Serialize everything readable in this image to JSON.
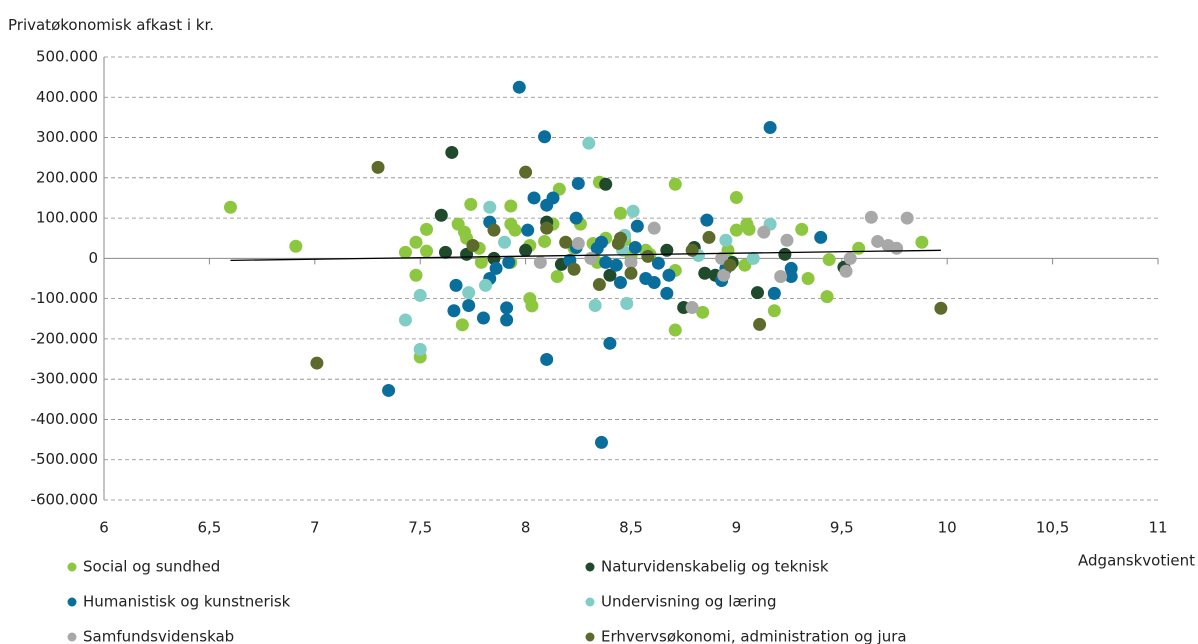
{
  "chart_data": {
    "type": "scatter",
    "y_label": "Privatøkonomisk afkast i kr.",
    "x_label": "Adganskvotient",
    "xlim": [
      6,
      11
    ],
    "xticks": [
      6,
      {
        "value": 6.5,
        "label": "6,5"
      },
      7,
      {
        "value": 7.5,
        "label": "7,5"
      },
      8,
      {
        "value": 8.5,
        "label": "8,5"
      },
      9,
      {
        "value": 9.5,
        "label": "9,5"
      },
      10,
      {
        "value": 10.5,
        "label": "10,5"
      },
      11
    ],
    "ylim": [
      -600000,
      500000
    ],
    "yticks": [
      {
        "value": -600000,
        "label": "-600.000"
      },
      {
        "value": -500000,
        "label": "-500.000"
      },
      {
        "value": -400000,
        "label": "-400.000"
      },
      {
        "value": -300000,
        "label": "-300.000"
      },
      {
        "value": -200000,
        "label": "-200.000"
      },
      {
        "value": -100000,
        "label": "-100.000"
      },
      0,
      {
        "value": 100000,
        "label": "100.000"
      },
      {
        "value": 200000,
        "label": "200.000"
      },
      {
        "value": 300000,
        "label": "300.000"
      },
      {
        "value": 400000,
        "label": "400.000"
      },
      {
        "value": 500000,
        "label": "500.000"
      }
    ],
    "grid": true,
    "legend_position": "bottom",
    "trendline": {
      "color": "#000000",
      "x": [
        6.6,
        9.97
      ],
      "y": [
        -5000,
        20000
      ]
    },
    "series": [
      {
        "name": "Social og sundhed",
        "color": "#8dc63f",
        "x": [
          6.6,
          6.91,
          7.43,
          7.48,
          7.53,
          7.53,
          7.48,
          7.5,
          7.68,
          7.71,
          7.72,
          7.74,
          7.7,
          7.78,
          7.79,
          7.93,
          7.93,
          7.95,
          7.93,
          8.02,
          8.03,
          8.02,
          8.09,
          8.16,
          8.13,
          8.15,
          8.23,
          8.26,
          8.32,
          8.35,
          8.34,
          8.45,
          8.38,
          8.47,
          8.5,
          8.57,
          8.59,
          8.71,
          8.71,
          8.71,
          8.84,
          8.96,
          9.0,
          9.0,
          9.04,
          9.05,
          9.06,
          9.18,
          9.31,
          9.34,
          9.44,
          9.43,
          9.58,
          9.88
        ],
        "y": [
          127000,
          30000,
          15000,
          40000,
          72000,
          18000,
          -42000,
          -245000,
          85000,
          65000,
          50000,
          134000,
          -165000,
          25000,
          -10000,
          130000,
          85000,
          70000,
          -10000,
          -100000,
          -118000,
          32000,
          42000,
          172000,
          85000,
          -45000,
          25000,
          85000,
          37000,
          189000,
          -10000,
          112000,
          50000,
          45000,
          5000,
          20000,
          10000,
          184000,
          -30000,
          -178000,
          -134000,
          20000,
          151000,
          70000,
          -17000,
          85000,
          72000,
          -130000,
          72000,
          -50000,
          -3000,
          -95000,
          25000,
          40000
        ]
      },
      {
        "name": "Naturvidenskabelig og teknisk",
        "color": "#1f4a2c",
        "x": [
          7.6,
          7.65,
          7.62,
          7.72,
          7.85,
          8.0,
          8.1,
          8.17,
          8.38,
          8.4,
          8.67,
          8.75,
          8.8,
          8.85,
          8.9,
          8.98,
          9.1,
          9.23,
          9.51
        ],
        "y": [
          107000,
          263000,
          15000,
          10000,
          0,
          20000,
          90000,
          -15000,
          184000,
          -42000,
          20000,
          -122000,
          27000,
          -37000,
          -42000,
          -10000,
          -85000,
          10000,
          -22000
        ]
      },
      {
        "name": "Humanistisk og kunstnerisk",
        "color": "#0a6e9c",
        "x": [
          7.35,
          7.67,
          7.66,
          7.73,
          7.8,
          7.83,
          7.86,
          7.83,
          7.91,
          7.91,
          7.92,
          7.97,
          8.01,
          8.04,
          8.09,
          8.1,
          8.1,
          8.13,
          8.21,
          8.25,
          8.24,
          8.24,
          8.34,
          8.36,
          8.38,
          8.36,
          8.4,
          8.43,
          8.45,
          8.52,
          8.53,
          8.57,
          8.63,
          8.68,
          8.67,
          8.86,
          8.93,
          8.95,
          9.16,
          9.18,
          9.26,
          9.26,
          9.4,
          8.61
        ],
        "y": [
          -328000,
          -67000,
          -130000,
          -117000,
          -148000,
          -50000,
          -25000,
          90000,
          -123000,
          -153000,
          -10000,
          425000,
          70000,
          150000,
          302000,
          -251000,
          132000,
          150000,
          -5000,
          186000,
          100000,
          27000,
          25000,
          40000,
          -10000,
          -457000,
          -211000,
          -17000,
          -60000,
          27000,
          80000,
          -50000,
          -12000,
          -42000,
          -87000,
          95000,
          -55000,
          -25000,
          325000,
          -87000,
          -25000,
          -45000,
          52000,
          -60000
        ]
      },
      {
        "name": "Undervisning og læring",
        "color": "#7fcdc4",
        "x": [
          7.43,
          7.5,
          7.5,
          7.73,
          7.81,
          7.83,
          7.9,
          8.3,
          8.33,
          8.47,
          8.48,
          8.51,
          8.82,
          8.95,
          9.08,
          9.16,
          8.46
        ],
        "y": [
          -153000,
          -92000,
          -226000,
          -85000,
          -67000,
          127000,
          40000,
          286000,
          -117000,
          57000,
          -112000,
          117000,
          7000,
          45000,
          0,
          85000,
          20000
        ]
      },
      {
        "name": "Samfundsvidenskab",
        "color": "#a8a8a8",
        "x": [
          8.07,
          8.25,
          8.31,
          8.5,
          8.61,
          8.79,
          8.93,
          8.94,
          9.13,
          9.21,
          9.24,
          9.52,
          9.54,
          9.64,
          9.67,
          9.72,
          9.76,
          9.81
        ],
        "y": [
          -10000,
          37000,
          0,
          -10000,
          75000,
          -122000,
          0,
          -42000,
          65000,
          -45000,
          45000,
          -32000,
          0,
          102000,
          42000,
          32000,
          25000,
          100000
        ]
      },
      {
        "name": "Erhvervsøkonomi, administration og jura",
        "color": "#5c6b2c",
        "x": [
          7.01,
          7.3,
          7.75,
          7.85,
          8.0,
          8.1,
          8.19,
          8.23,
          8.35,
          8.45,
          8.5,
          8.58,
          8.79,
          8.87,
          8.97,
          9.11,
          9.97,
          8.44
        ],
        "y": [
          -260000,
          226000,
          32000,
          70000,
          214000,
          75000,
          40000,
          -27000,
          -65000,
          50000,
          -37000,
          5000,
          20000,
          52000,
          -17000,
          -164000,
          -124000,
          37000
        ]
      }
    ]
  }
}
